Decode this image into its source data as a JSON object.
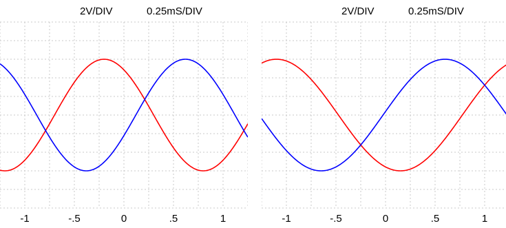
{
  "chart_data": [
    {
      "type": "line",
      "volts_per_div_label": "2V/DIV",
      "time_per_div_label": "0.25mS/DIV",
      "x_ticks": [
        "-1",
        "-.5",
        "0",
        ".5",
        "1"
      ],
      "x_tick_values": [
        -1,
        -0.5,
        0,
        0.5,
        1
      ],
      "xlim": [
        -1.25,
        1.25
      ],
      "ylim": [
        -5,
        5
      ],
      "grid": true,
      "series": [
        {
          "color": "#ff0000",
          "amplitude": 3,
          "period": 2,
          "peak_x": -0.2
        },
        {
          "color": "#0000ff",
          "amplitude": 3,
          "period": 2,
          "peak_x": 0.62
        }
      ]
    },
    {
      "type": "line",
      "volts_per_div_label": "2V/DIV",
      "time_per_div_label": "0.25mS/DIV",
      "x_ticks": [
        "-1",
        "-.5",
        "0",
        ".5",
        "1"
      ],
      "x_tick_values": [
        -1,
        -0.5,
        0,
        0.5,
        1
      ],
      "xlim": [
        -1.25,
        1.25
      ],
      "ylim": [
        -5,
        5
      ],
      "grid": true,
      "series": [
        {
          "color": "#ff0000",
          "amplitude": 3,
          "period": 2.5,
          "peak_x": -1.1
        },
        {
          "color": "#0000ff",
          "amplitude": 3,
          "period": 2.5,
          "peak_x": 0.6
        }
      ]
    }
  ]
}
